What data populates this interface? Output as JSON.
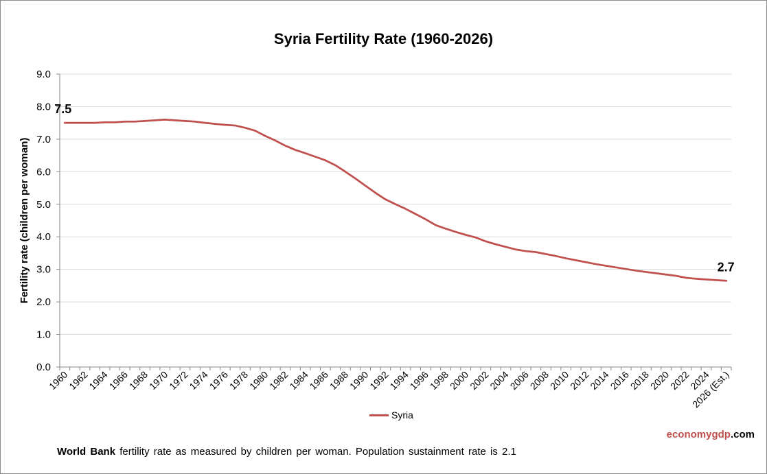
{
  "chart_data": {
    "type": "line",
    "title": "Syria Fertility Rate (1960-2026)",
    "ylabel": "Fertility rate (children per woman)",
    "xlabel": "",
    "ylim": [
      0,
      9
    ],
    "yticks": [
      "0.0",
      "1.0",
      "2.0",
      "3.0",
      "4.0",
      "5.0",
      "6.0",
      "7.0",
      "8.0",
      "9.0"
    ],
    "grid": true,
    "legend_position": "bottom",
    "x_tick_labels": [
      "1960",
      "1962",
      "1964",
      "1966",
      "1968",
      "1970",
      "1972",
      "1974",
      "1976",
      "1978",
      "1980",
      "1982",
      "1984",
      "1986",
      "1988",
      "1990",
      "1992",
      "1994",
      "1996",
      "1998",
      "2000",
      "2002",
      "2004",
      "2006",
      "2008",
      "2010",
      "2012",
      "2014",
      "2016",
      "2018",
      "2020",
      "2022",
      "2024",
      "2026 (Est.)"
    ],
    "x": [
      1960,
      1961,
      1962,
      1963,
      1964,
      1965,
      1966,
      1967,
      1968,
      1969,
      1970,
      1971,
      1972,
      1973,
      1974,
      1975,
      1976,
      1977,
      1978,
      1979,
      1980,
      1981,
      1982,
      1983,
      1984,
      1985,
      1986,
      1987,
      1988,
      1989,
      1990,
      1991,
      1992,
      1993,
      1994,
      1995,
      1996,
      1997,
      1998,
      1999,
      2000,
      2001,
      2002,
      2003,
      2004,
      2005,
      2006,
      2007,
      2008,
      2009,
      2010,
      2011,
      2012,
      2013,
      2014,
      2015,
      2016,
      2017,
      2018,
      2019,
      2020,
      2021,
      2022,
      2023,
      2024,
      2025,
      2026
    ],
    "series": [
      {
        "name": "Syria",
        "color": "#c0504d",
        "values": [
          7.5,
          7.5,
          7.5,
          7.5,
          7.52,
          7.52,
          7.54,
          7.54,
          7.56,
          7.58,
          7.6,
          7.58,
          7.56,
          7.54,
          7.5,
          7.47,
          7.44,
          7.42,
          7.35,
          7.26,
          7.1,
          6.96,
          6.8,
          6.67,
          6.57,
          6.46,
          6.35,
          6.2,
          6.0,
          5.79,
          5.57,
          5.35,
          5.15,
          5.0,
          4.86,
          4.7,
          4.54,
          4.36,
          4.25,
          4.15,
          4.06,
          3.98,
          3.86,
          3.77,
          3.69,
          3.61,
          3.56,
          3.53,
          3.47,
          3.41,
          3.34,
          3.28,
          3.22,
          3.16,
          3.11,
          3.06,
          3.01,
          2.96,
          2.92,
          2.88,
          2.84,
          2.8,
          2.74,
          2.71,
          2.69,
          2.67,
          2.65
        ]
      }
    ],
    "annotations": [
      {
        "x": 1960,
        "text": "7.5"
      },
      {
        "x": 2026,
        "text": "2.7"
      }
    ]
  },
  "footnote": {
    "source_bold": "World Bank",
    "text": " fertility rate as measured by children per woman.  Population sustainment rate is 2.1"
  },
  "watermark": {
    "part1": "economy",
    "part2": "gdp",
    "part3": ".com",
    "color1": "#c0504d",
    "color2": "#000000"
  }
}
